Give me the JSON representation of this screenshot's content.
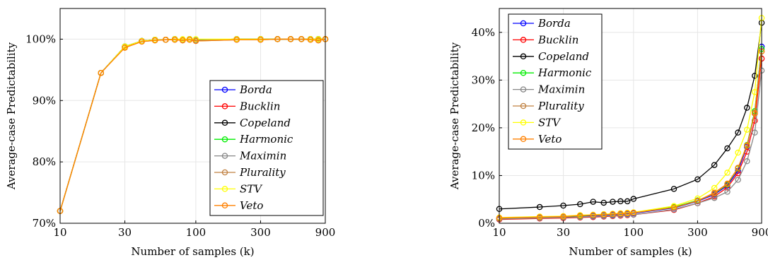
{
  "chart_data": [
    {
      "type": "line",
      "xlabel": "Number of samples (k)",
      "ylabel": "Average-case Predictability",
      "xscale": "log",
      "xlim": [
        10,
        900
      ],
      "ylim": [
        70,
        105
      ],
      "xticks": [
        10,
        30,
        100,
        300,
        900
      ],
      "xtick_labels": [
        "10",
        "30",
        "100",
        "300",
        "900"
      ],
      "yticks": [
        70,
        80,
        90,
        100
      ],
      "ytick_labels": [
        "70%",
        "80%",
        "90%",
        "100%"
      ],
      "grid": true,
      "legend_position": "lower-right",
      "x": [
        10,
        20,
        30,
        40,
        50,
        60,
        70,
        80,
        90,
        100,
        200,
        300,
        400,
        500,
        600,
        700,
        800,
        900
      ],
      "series": [
        {
          "name": "Borda",
          "color": "#0000ff",
          "values": [
            72.0,
            94.5,
            98.8,
            99.7,
            99.9,
            99.9,
            100.0,
            99.9,
            100.0,
            99.8,
            100.0,
            100.0,
            100.0,
            100.0,
            100.0,
            100.0,
            100.0,
            100.0
          ]
        },
        {
          "name": "Bucklin",
          "color": "#ff0000",
          "values": [
            72.0,
            94.5,
            98.8,
            99.7,
            99.9,
            99.9,
            100.0,
            99.9,
            100.0,
            99.8,
            100.0,
            100.0,
            100.0,
            100.0,
            100.0,
            100.0,
            100.0,
            100.0
          ]
        },
        {
          "name": "Copeland",
          "color": "#000000",
          "values": [
            72.0,
            94.5,
            98.8,
            99.7,
            99.9,
            99.9,
            100.0,
            99.9,
            100.0,
            99.8,
            100.0,
            100.0,
            100.0,
            100.0,
            100.0,
            100.0,
            100.0,
            100.0
          ]
        },
        {
          "name": "Harmonic",
          "color": "#00ee00",
          "values": [
            72.0,
            94.5,
            98.8,
            99.7,
            99.9,
            99.9,
            100.0,
            99.9,
            100.0,
            99.8,
            100.0,
            100.0,
            100.0,
            100.0,
            100.0,
            100.0,
            100.0,
            100.0
          ]
        },
        {
          "name": "Maximin",
          "color": "#888888",
          "values": [
            72.0,
            94.5,
            98.8,
            99.7,
            99.9,
            99.9,
            100.0,
            99.9,
            100.0,
            99.8,
            100.0,
            100.0,
            100.0,
            100.0,
            100.0,
            100.0,
            100.0,
            100.0
          ]
        },
        {
          "name": "Plurality",
          "color": "#c08040",
          "values": [
            72.0,
            94.5,
            98.7,
            99.6,
            99.8,
            99.9,
            99.9,
            99.8,
            99.9,
            99.7,
            99.9,
            99.9,
            100.0,
            100.0,
            100.0,
            99.9,
            99.8,
            100.0
          ]
        },
        {
          "name": "STV",
          "color": "#ffff00",
          "values": [
            72.0,
            94.5,
            98.8,
            99.7,
            99.9,
            99.9,
            100.0,
            100.0,
            100.0,
            100.0,
            100.0,
            100.0,
            100.0,
            100.0,
            100.0,
            100.0,
            100.0,
            100.0
          ]
        },
        {
          "name": "Veto",
          "color": "#ff8000",
          "values": [
            72.0,
            94.5,
            98.6,
            99.6,
            99.8,
            99.9,
            99.9,
            99.8,
            99.9,
            99.7,
            99.9,
            99.9,
            100.0,
            100.0,
            100.0,
            99.9,
            99.8,
            100.0
          ]
        }
      ]
    },
    {
      "type": "line",
      "xlabel": "Number of samples (k)",
      "ylabel": "Average-case Predictability",
      "xscale": "log",
      "xlim": [
        10,
        900
      ],
      "ylim": [
        0,
        45
      ],
      "xticks": [
        10,
        30,
        100,
        300,
        900
      ],
      "xtick_labels": [
        "10",
        "30",
        "100",
        "300",
        "900"
      ],
      "yticks": [
        0,
        10,
        20,
        30,
        40
      ],
      "ytick_labels": [
        "0%",
        "10%",
        "20%",
        "30%",
        "40%"
      ],
      "grid": true,
      "legend_position": "top-left",
      "x": [
        10,
        20,
        30,
        40,
        50,
        60,
        70,
        80,
        90,
        100,
        200,
        300,
        400,
        500,
        600,
        700,
        800,
        900
      ],
      "series": [
        {
          "name": "Borda",
          "color": "#0000ff",
          "values": [
            1.0,
            1.2,
            1.3,
            1.5,
            1.6,
            1.7,
            1.8,
            1.9,
            2.0,
            2.1,
            3.2,
            4.6,
            6.0,
            7.9,
            11.0,
            16.0,
            23.0,
            37.0
          ]
        },
        {
          "name": "Bucklin",
          "color": "#ff0000",
          "values": [
            0.8,
            1.0,
            1.1,
            1.2,
            1.3,
            1.4,
            1.5,
            1.6,
            1.7,
            1.8,
            2.8,
            4.2,
            5.6,
            7.5,
            10.5,
            15.0,
            21.5,
            34.5
          ]
        },
        {
          "name": "Copeland",
          "color": "#000000",
          "values": [
            3.0,
            3.4,
            3.7,
            4.0,
            4.5,
            4.3,
            4.5,
            4.6,
            4.6,
            5.1,
            7.2,
            9.2,
            12.2,
            15.7,
            19.0,
            24.2,
            30.9,
            42.0
          ]
        },
        {
          "name": "Harmonic",
          "color": "#00ee00",
          "values": [
            1.0,
            1.2,
            1.4,
            1.5,
            1.7,
            1.8,
            1.9,
            2.0,
            2.1,
            2.2,
            3.4,
            4.8,
            6.2,
            8.1,
            11.5,
            16.4,
            23.5,
            36.5
          ]
        },
        {
          "name": "Maximin",
          "color": "#888888",
          "values": [
            0.9,
            1.1,
            1.2,
            1.3,
            1.4,
            1.5,
            1.6,
            1.7,
            1.8,
            1.8,
            2.9,
            4.2,
            5.3,
            6.6,
            9.1,
            13.0,
            19.0,
            32.0
          ]
        },
        {
          "name": "Plurality",
          "color": "#c08040",
          "values": [
            1.1,
            1.3,
            1.4,
            1.6,
            1.7,
            1.8,
            1.9,
            2.0,
            2.1,
            2.2,
            3.3,
            4.7,
            6.2,
            8.2,
            11.6,
            16.2,
            23.2,
            36.0
          ]
        },
        {
          "name": "STV",
          "color": "#ffff00",
          "values": [
            1.2,
            1.4,
            1.5,
            1.7,
            1.8,
            1.9,
            2.0,
            2.1,
            2.2,
            2.3,
            3.6,
            5.2,
            7.4,
            10.6,
            14.8,
            19.6,
            27.5,
            43.0
          ]
        },
        {
          "name": "Veto",
          "color": "#ff8000",
          "values": [
            1.1,
            1.3,
            1.4,
            1.6,
            1.7,
            1.8,
            1.9,
            2.0,
            2.1,
            2.2,
            3.3,
            4.7,
            6.4,
            8.3,
            11.6,
            16.3,
            23.0,
            36.0
          ]
        }
      ]
    }
  ]
}
